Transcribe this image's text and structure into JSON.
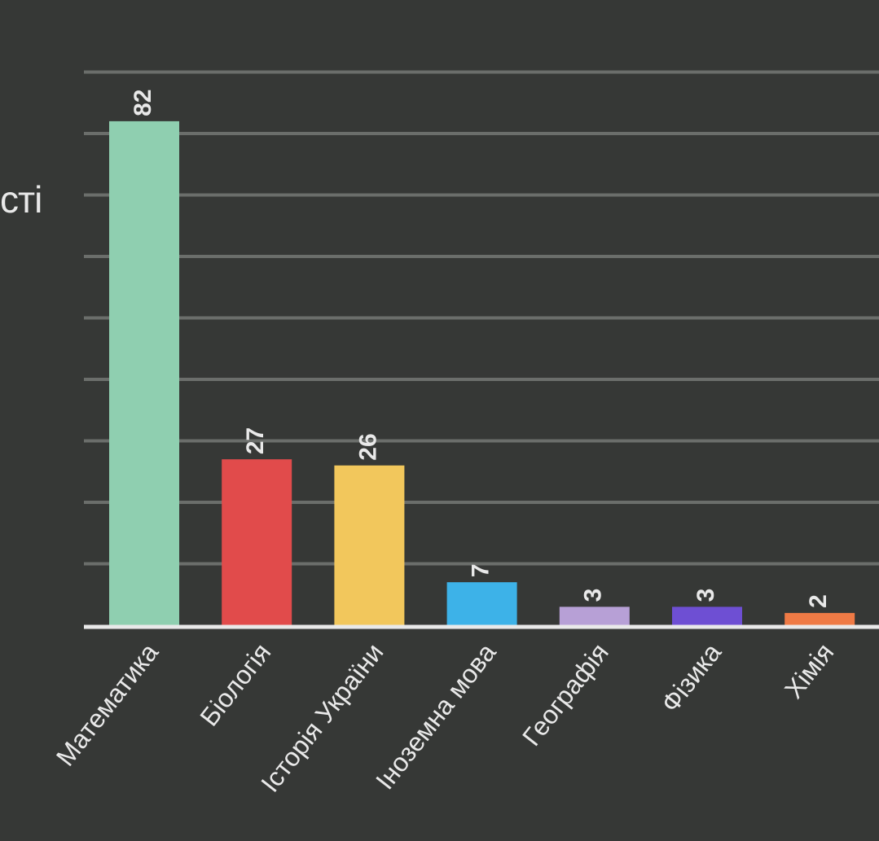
{
  "chart_data": {
    "type": "bar",
    "title": "",
    "xlabel": "",
    "ylabel": "сті",
    "ylim": [
      0,
      90
    ],
    "grid": true,
    "categories": [
      "Математика",
      "Біологія",
      "Історія України",
      "Іноземна мова",
      "Географія",
      "Фізика",
      "Хімія"
    ],
    "values": [
      82,
      27,
      26,
      7,
      3,
      3,
      2
    ],
    "colors": [
      "#8fcfb0",
      "#e14b4b",
      "#f2c75c",
      "#3db2e8",
      "#b7a0d6",
      "#6e4fd3",
      "#ef7a45"
    ],
    "data_labels": [
      "82",
      "27",
      "26",
      "7",
      "3",
      "3",
      "2"
    ]
  },
  "style": {
    "background": "#363836",
    "grid_color": "#6b6e6b",
    "axis_color": "#e9e9e9",
    "text_color": "#e9e9e9"
  }
}
